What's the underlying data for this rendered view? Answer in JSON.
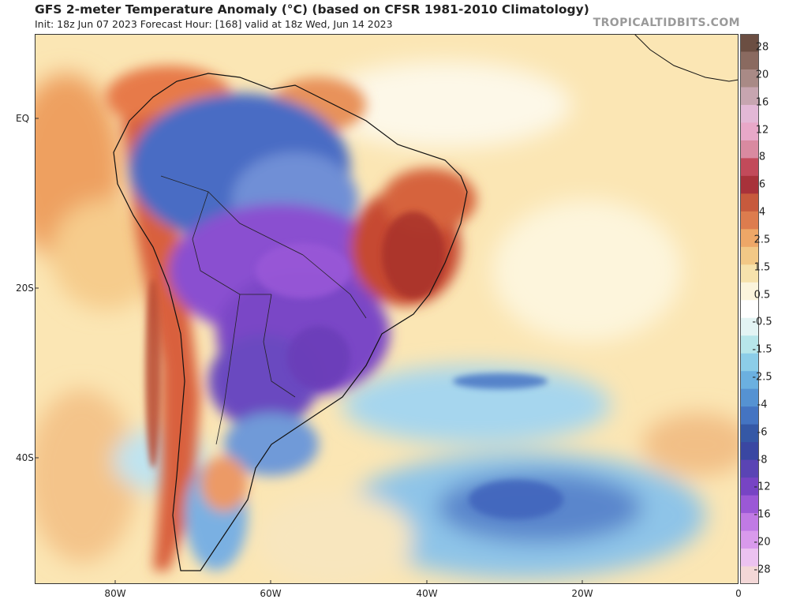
{
  "title": "GFS 2-meter Temperature Anomaly (°C) (based on CFSR 1981-2010 Climatology)",
  "subtitle": "Init: 18z Jun 07 2023   Forecast Hour: [168]   valid at 18z Wed, Jun 14 2023",
  "brand": "TROPICALTIDBITS.COM",
  "latitude_labels": [
    "EQ",
    "20S",
    "40S"
  ],
  "longitude_labels": [
    "80W",
    "60W",
    "40W",
    "20W",
    "0"
  ],
  "colorbar": {
    "labels": [
      "28",
      "20",
      "16",
      "12",
      "8",
      "6",
      "4",
      "2.5",
      "1.5",
      "0.5",
      "-0.5",
      "-1.5",
      "-2.5",
      "-4",
      "-6",
      "-8",
      "-12",
      "-16",
      "-20",
      "-28"
    ],
    "colors": [
      "#6b4e42",
      "#8a6a60",
      "#a98a86",
      "#c7a5b0",
      "#e3b8d6",
      "#e8a8c8",
      "#d98aa0",
      "#c24a5a",
      "#a8323a",
      "#c75a3d",
      "#dd7c4e",
      "#eea767",
      "#f2c886",
      "#f6e2ac",
      "#fbf4dc",
      "#ffffff",
      "#e3f4f4",
      "#b7e6ea",
      "#8ccde8",
      "#6bb0e0",
      "#5592d2",
      "#4474c2",
      "#3558a6",
      "#3a47a2",
      "#5a44b4",
      "#7744c4",
      "#9b58d6",
      "#c07ae4",
      "#d99aec",
      "#ecc2f0",
      "#f3d7d7"
    ]
  },
  "anomaly_colors": {
    "ocean_warm": "#fbe6b4",
    "land_warm": "#e98a52",
    "hot_core": "#c64a33",
    "cold_blue": "#3f64bc",
    "cold_purple": "#8a4fd0",
    "cool_light": "#9fd4ec"
  }
}
